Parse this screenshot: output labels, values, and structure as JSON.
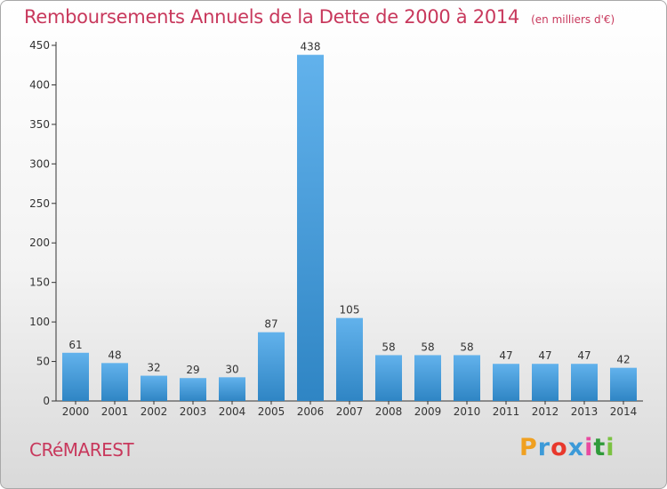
{
  "header": {
    "title": "Remboursements Annuels de la Dette de 2000 à 2014",
    "subtitle": "(en milliers d'€)"
  },
  "footer": {
    "commune": "CRéMAREST",
    "brand_parts": [
      "P",
      "r",
      "o",
      "x",
      "i",
      "t",
      "i"
    ]
  },
  "colors": {
    "title": "#c8385c",
    "bar_top": "#62b2ec",
    "bar_bottom": "#2f85c4",
    "axis": "#333333"
  },
  "chart_data": {
    "type": "bar",
    "title": "Remboursements Annuels de la Dette de 2000 à 2014",
    "subtitle": "(en milliers d'€)",
    "categories": [
      "2000",
      "2001",
      "2002",
      "2003",
      "2004",
      "2005",
      "2006",
      "2007",
      "2008",
      "2009",
      "2010",
      "2011",
      "2012",
      "2013",
      "2014"
    ],
    "values": [
      61,
      48,
      32,
      29,
      30,
      87,
      438,
      105,
      58,
      58,
      58,
      47,
      47,
      47,
      42
    ],
    "ylim": [
      0,
      450
    ],
    "yticks": [
      0,
      50,
      100,
      150,
      200,
      250,
      300,
      350,
      400,
      450
    ],
    "grid": false,
    "legend": "none"
  }
}
